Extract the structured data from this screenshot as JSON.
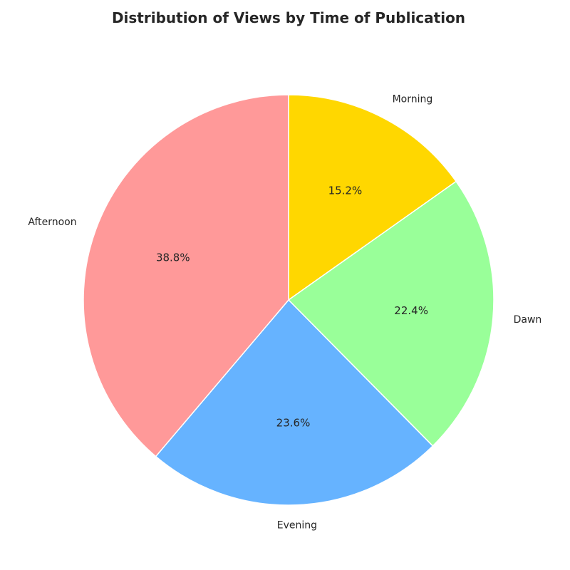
{
  "chart_data": {
    "type": "pie",
    "title": "Distribution of Views by Time of Publication",
    "categories": [
      "Morning",
      "Dawn",
      "Evening",
      "Afternoon"
    ],
    "values": [
      15.2,
      22.4,
      23.6,
      38.8
    ],
    "value_labels": [
      "15.2%",
      "22.4%",
      "23.6%",
      "38.8%"
    ],
    "colors": [
      "#ffd700",
      "#99ff99",
      "#66b3ff",
      "#ff9999"
    ],
    "start": "top",
    "direction": "clockwise",
    "edge_color": "#ffffff"
  }
}
